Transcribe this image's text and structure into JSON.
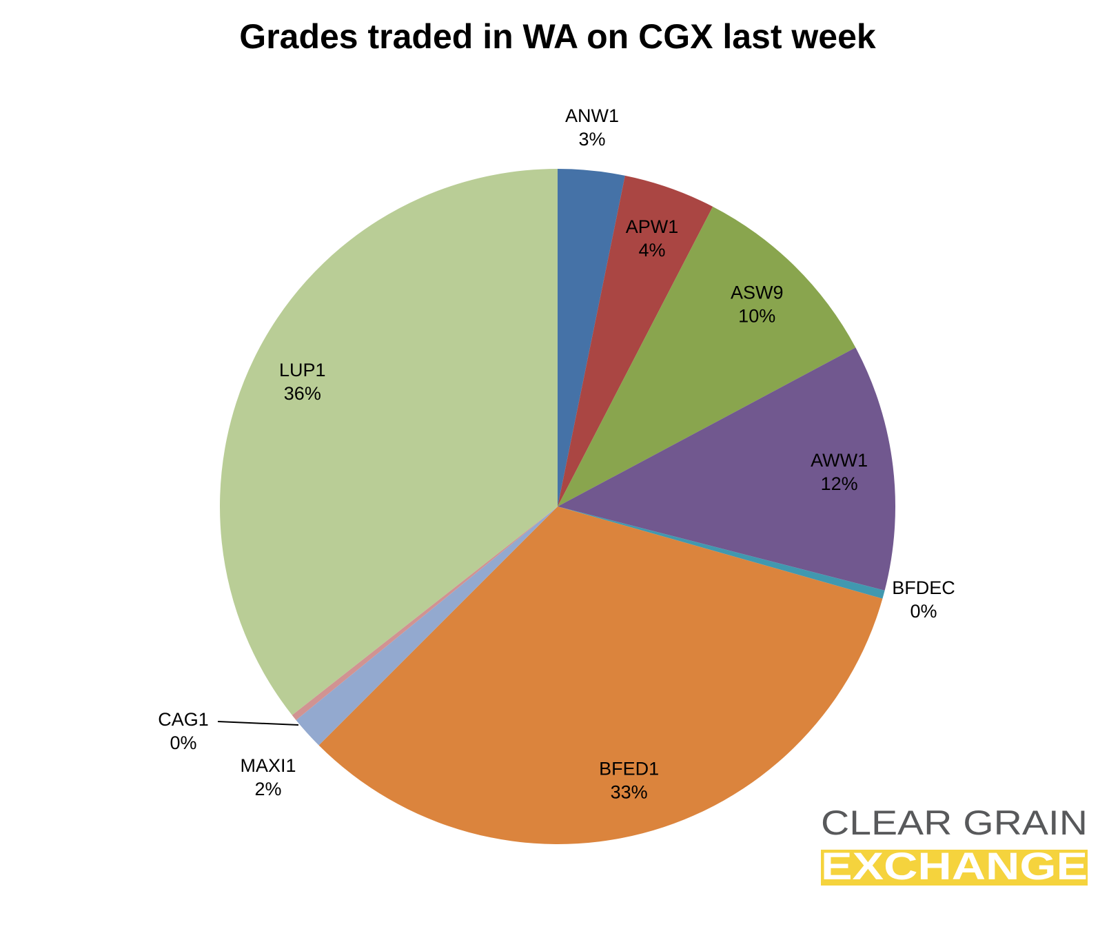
{
  "chart_data": {
    "type": "pie",
    "title": "Grades traded in WA on CGX last week",
    "categories": [
      "ANW1",
      "APW1",
      "ASW9",
      "AWW1",
      "BFDEC",
      "BFED1",
      "MAXI1",
      "CAG1",
      "LUP1"
    ],
    "values": [
      3.2,
      4.4,
      9.6,
      11.8,
      0.4,
      33.1,
      1.6,
      0.3,
      35.6
    ],
    "value_labels": [
      "3%",
      "4%",
      "10%",
      "12%",
      "0%",
      "33%",
      "2%",
      "0%",
      "36%"
    ],
    "colors": [
      "#4572a7",
      "#aa4643",
      "#89a54e",
      "#71588f",
      "#4198af",
      "#db843d",
      "#93a9cf",
      "#d19392",
      "#b9cd96"
    ]
  },
  "logo": {
    "line1": "CLEAR GRAIN",
    "line2": "EXCHANGE"
  }
}
